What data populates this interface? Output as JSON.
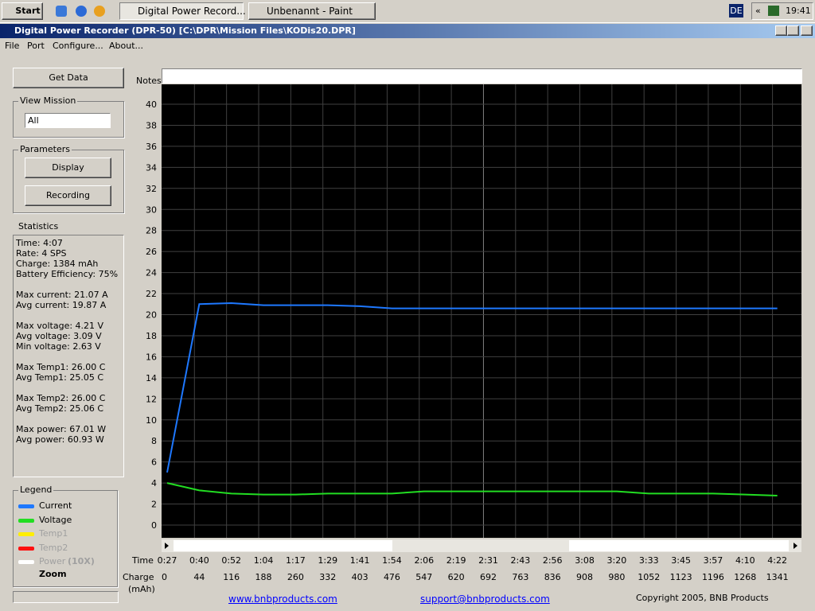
{
  "taskbar": {
    "start": "Start",
    "tasks": [
      "Digital Power Record...",
      "Unbenannt - Paint"
    ],
    "language": "DE",
    "tray_arrow": "«",
    "clock": "19:41"
  },
  "window": {
    "title": "Digital Power Recorder (DPR-50) [C:\\DPR\\Mission Files\\KODis20.DPR]"
  },
  "menu": [
    "File",
    "Port",
    "Configure...",
    "About..."
  ],
  "panel": {
    "get_data": "Get Data",
    "view_mission": {
      "label": "View Mission",
      "selected": "All"
    },
    "parameters": {
      "label": "Parameters",
      "buttons": [
        "Display",
        "Recording"
      ]
    },
    "statistics": {
      "label": "Statistics",
      "groups": [
        [
          "Time: 4:07",
          "Rate: 4 SPS",
          "Charge: 1384 mAh",
          "Battery Efficiency: 75%"
        ],
        [
          "Max current: 21.07 A",
          "Avg current: 19.87 A"
        ],
        [
          "Max voltage: 4.21 V",
          "Avg voltage: 3.09 V",
          "Min voltage: 2.63 V"
        ],
        [
          "Max Temp1: 26.00 C",
          "Avg Temp1: 25.05 C"
        ],
        [
          "Max Temp2: 26.00 C",
          "Avg Temp2: 25.06 C"
        ],
        [
          "Max power: 67.01 W",
          "Avg power: 60.93 W"
        ]
      ]
    },
    "legend": {
      "label": "Legend",
      "items": [
        {
          "name": "Current",
          "color": "#1e78ff"
        },
        {
          "name": "Voltage",
          "color": "#22dd22"
        },
        {
          "name": "Temp1",
          "color": "#ffee00"
        },
        {
          "name": "Temp2",
          "color": "#ff1010"
        },
        {
          "name": "Power",
          "suffix": "(10X)",
          "color": "#ffffff"
        }
      ],
      "zoom": "Zoom"
    }
  },
  "notes_label": "Notes",
  "chart_data": {
    "type": "line",
    "x_label": "Time",
    "charge_label": "Charge",
    "charge_unit": "(mAh)",
    "categories": [
      "0:27",
      "0:40",
      "0:52",
      "1:04",
      "1:17",
      "1:29",
      "1:41",
      "1:54",
      "2:06",
      "2:19",
      "2:31",
      "2:43",
      "2:56",
      "3:08",
      "3:20",
      "3:33",
      "3:45",
      "3:57",
      "4:10",
      "4:22"
    ],
    "charge": [
      0,
      44,
      116,
      188,
      260,
      332,
      403,
      476,
      547,
      620,
      692,
      763,
      836,
      908,
      980,
      1052,
      1123,
      1196,
      1268,
      1341
    ],
    "series": [
      {
        "name": "Current",
        "color": "#1e78ff",
        "values": [
          5,
          21.0,
          21.1,
          20.9,
          20.9,
          20.9,
          20.8,
          20.6,
          20.6,
          20.6,
          20.6,
          20.6,
          20.6,
          20.6,
          20.6,
          20.6,
          20.6,
          20.6,
          20.6,
          20.6
        ]
      },
      {
        "name": "Voltage",
        "color": "#22dd22",
        "values": [
          4.0,
          3.3,
          3.0,
          2.9,
          2.9,
          3.0,
          3.0,
          3.0,
          3.2,
          3.2,
          3.2,
          3.2,
          3.2,
          3.2,
          3.2,
          3.0,
          3.0,
          3.0,
          2.9,
          2.8
        ]
      }
    ],
    "ylim": [
      0,
      40
    ],
    "yticks": [
      0,
      2,
      4,
      6,
      8,
      10,
      12,
      14,
      16,
      18,
      20,
      22,
      24,
      26,
      28,
      30,
      32,
      34,
      36,
      38,
      40
    ],
    "grid": true
  },
  "footer": {
    "website": "www.bnbproducts.com",
    "email": "support@bnbproducts.com",
    "copyright": "Copyright 2005, BNB Products"
  }
}
